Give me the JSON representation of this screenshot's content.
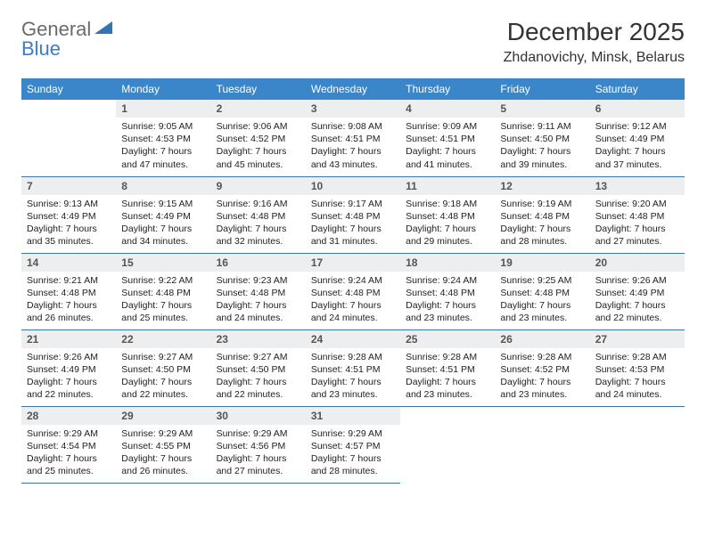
{
  "logo": {
    "general": "General",
    "blue": "Blue"
  },
  "title": "December 2025",
  "location": "Zhdanovichy, Minsk, Belarus",
  "colors": {
    "header_bg": "#3a86c8",
    "header_text": "#ffffff",
    "daynum_bg": "#eceeef",
    "border": "#3a76a8",
    "logo_gray": "#6b6b6b",
    "logo_blue": "#3a7fc4"
  },
  "fonts": {
    "title_size": 28,
    "location_size": 16,
    "header_size": 12,
    "daynum_size": 12,
    "info_size": 10.5
  },
  "weekdays": [
    "Sunday",
    "Monday",
    "Tuesday",
    "Wednesday",
    "Thursday",
    "Friday",
    "Saturday"
  ],
  "weeks": [
    [
      null,
      {
        "n": "1",
        "sunrise": "9:05 AM",
        "sunset": "4:53 PM",
        "dl": "7 hours and 47 minutes."
      },
      {
        "n": "2",
        "sunrise": "9:06 AM",
        "sunset": "4:52 PM",
        "dl": "7 hours and 45 minutes."
      },
      {
        "n": "3",
        "sunrise": "9:08 AM",
        "sunset": "4:51 PM",
        "dl": "7 hours and 43 minutes."
      },
      {
        "n": "4",
        "sunrise": "9:09 AM",
        "sunset": "4:51 PM",
        "dl": "7 hours and 41 minutes."
      },
      {
        "n": "5",
        "sunrise": "9:11 AM",
        "sunset": "4:50 PM",
        "dl": "7 hours and 39 minutes."
      },
      {
        "n": "6",
        "sunrise": "9:12 AM",
        "sunset": "4:49 PM",
        "dl": "7 hours and 37 minutes."
      }
    ],
    [
      {
        "n": "7",
        "sunrise": "9:13 AM",
        "sunset": "4:49 PM",
        "dl": "7 hours and 35 minutes."
      },
      {
        "n": "8",
        "sunrise": "9:15 AM",
        "sunset": "4:49 PM",
        "dl": "7 hours and 34 minutes."
      },
      {
        "n": "9",
        "sunrise": "9:16 AM",
        "sunset": "4:48 PM",
        "dl": "7 hours and 32 minutes."
      },
      {
        "n": "10",
        "sunrise": "9:17 AM",
        "sunset": "4:48 PM",
        "dl": "7 hours and 31 minutes."
      },
      {
        "n": "11",
        "sunrise": "9:18 AM",
        "sunset": "4:48 PM",
        "dl": "7 hours and 29 minutes."
      },
      {
        "n": "12",
        "sunrise": "9:19 AM",
        "sunset": "4:48 PM",
        "dl": "7 hours and 28 minutes."
      },
      {
        "n": "13",
        "sunrise": "9:20 AM",
        "sunset": "4:48 PM",
        "dl": "7 hours and 27 minutes."
      }
    ],
    [
      {
        "n": "14",
        "sunrise": "9:21 AM",
        "sunset": "4:48 PM",
        "dl": "7 hours and 26 minutes."
      },
      {
        "n": "15",
        "sunrise": "9:22 AM",
        "sunset": "4:48 PM",
        "dl": "7 hours and 25 minutes."
      },
      {
        "n": "16",
        "sunrise": "9:23 AM",
        "sunset": "4:48 PM",
        "dl": "7 hours and 24 minutes."
      },
      {
        "n": "17",
        "sunrise": "9:24 AM",
        "sunset": "4:48 PM",
        "dl": "7 hours and 24 minutes."
      },
      {
        "n": "18",
        "sunrise": "9:24 AM",
        "sunset": "4:48 PM",
        "dl": "7 hours and 23 minutes."
      },
      {
        "n": "19",
        "sunrise": "9:25 AM",
        "sunset": "4:48 PM",
        "dl": "7 hours and 23 minutes."
      },
      {
        "n": "20",
        "sunrise": "9:26 AM",
        "sunset": "4:49 PM",
        "dl": "7 hours and 22 minutes."
      }
    ],
    [
      {
        "n": "21",
        "sunrise": "9:26 AM",
        "sunset": "4:49 PM",
        "dl": "7 hours and 22 minutes."
      },
      {
        "n": "22",
        "sunrise": "9:27 AM",
        "sunset": "4:50 PM",
        "dl": "7 hours and 22 minutes."
      },
      {
        "n": "23",
        "sunrise": "9:27 AM",
        "sunset": "4:50 PM",
        "dl": "7 hours and 22 minutes."
      },
      {
        "n": "24",
        "sunrise": "9:28 AM",
        "sunset": "4:51 PM",
        "dl": "7 hours and 23 minutes."
      },
      {
        "n": "25",
        "sunrise": "9:28 AM",
        "sunset": "4:51 PM",
        "dl": "7 hours and 23 minutes."
      },
      {
        "n": "26",
        "sunrise": "9:28 AM",
        "sunset": "4:52 PM",
        "dl": "7 hours and 23 minutes."
      },
      {
        "n": "27",
        "sunrise": "9:28 AM",
        "sunset": "4:53 PM",
        "dl": "7 hours and 24 minutes."
      }
    ],
    [
      {
        "n": "28",
        "sunrise": "9:29 AM",
        "sunset": "4:54 PM",
        "dl": "7 hours and 25 minutes."
      },
      {
        "n": "29",
        "sunrise": "9:29 AM",
        "sunset": "4:55 PM",
        "dl": "7 hours and 26 minutes."
      },
      {
        "n": "30",
        "sunrise": "9:29 AM",
        "sunset": "4:56 PM",
        "dl": "7 hours and 27 minutes."
      },
      {
        "n": "31",
        "sunrise": "9:29 AM",
        "sunset": "4:57 PM",
        "dl": "7 hours and 28 minutes."
      },
      null,
      null,
      null
    ]
  ],
  "labels": {
    "sunrise": "Sunrise: ",
    "sunset": "Sunset: ",
    "daylight": "Daylight: "
  }
}
